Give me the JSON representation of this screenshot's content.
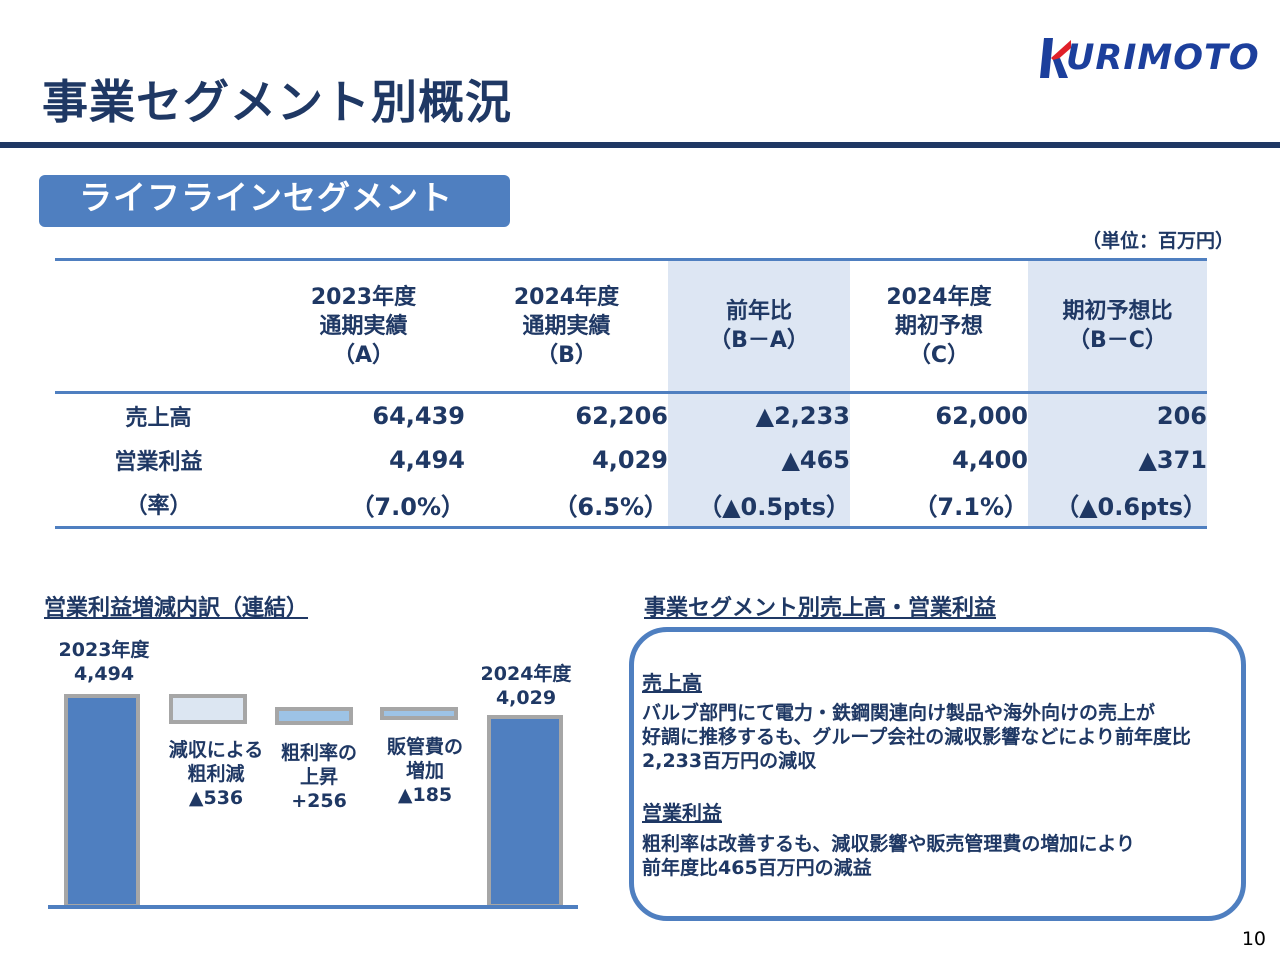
{
  "header": {
    "title": "事業セグメント別概況",
    "logo_text": "URIMOTO",
    "logo_full": "KURIMOTO"
  },
  "segment": {
    "badge": "ライフラインセグメント",
    "unit": "（単位：百万円）"
  },
  "table": {
    "headers": [
      {
        "lines": [
          "2023年度",
          "通期実績",
          "（A）"
        ]
      },
      {
        "lines": [
          "2024年度",
          "通期実績",
          "（B）"
        ]
      },
      {
        "lines": [
          "前年比",
          "（B－A）"
        ]
      },
      {
        "lines": [
          "2024年度",
          "期初予想",
          "（C）"
        ]
      },
      {
        "lines": [
          "期初予想比",
          "（B－C）"
        ]
      }
    ],
    "rows": [
      {
        "label": "売上高",
        "values": [
          "64,439",
          "62,206",
          "▲2,233",
          "62,000",
          "206"
        ]
      },
      {
        "label": "営業利益",
        "values": [
          "4,494",
          "4,029",
          "▲465",
          "4,400",
          "▲371"
        ]
      },
      {
        "label": "（率）",
        "values": [
          "（7.0%）",
          "（6.5%）",
          "（▲0.5pts）",
          "（7.1%）",
          "（▲0.6pts）"
        ]
      }
    ]
  },
  "breakdown": {
    "title": "営業利益増減内訳（連結）",
    "start": {
      "label": "2023年度",
      "value": "4,494"
    },
    "steps": [
      {
        "lines": [
          "減収による",
          "粗利減",
          "▲536"
        ]
      },
      {
        "lines": [
          "粗利率の",
          "上昇",
          "+256"
        ]
      },
      {
        "lines": [
          "販管費の",
          "増加",
          "▲185"
        ]
      }
    ],
    "end": {
      "label": "2024年度",
      "value": "4,029"
    }
  },
  "commentary": {
    "title": "事業セグメント別売上高・営業利益",
    "sales_heading": "売上高",
    "sales_lines": [
      "バルブ部門にて電力・鉄鋼関連向け製品や海外向けの売上が",
      "好調に推移するも、グループ会社の減収影響などにより前年度比",
      "2,233百万円の減収"
    ],
    "profit_heading": "営業利益",
    "profit_lines": [
      "粗利率は改善するも、減収影響や販売管理費の増加により",
      "前年度比465百万円の減益"
    ]
  },
  "page_number": "10",
  "colors": {
    "navy": "#1f3864",
    "blue": "#4f7fc0",
    "shade": "#dde6f3",
    "logo_red": "#e0202a",
    "logo_blue": "#1c3f9c"
  }
}
